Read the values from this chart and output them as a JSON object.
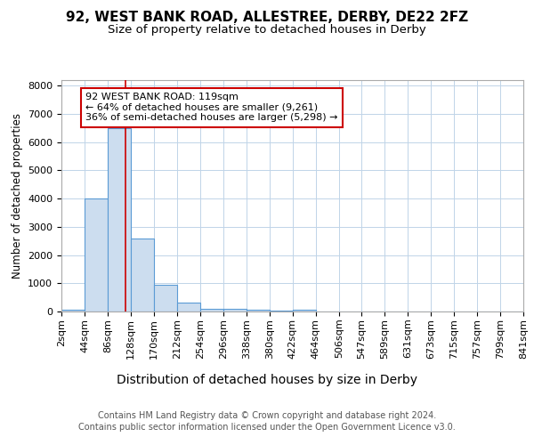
{
  "title1": "92, WEST BANK ROAD, ALLESTREE, DERBY, DE22 2FZ",
  "title2": "Size of property relative to detached houses in Derby",
  "xlabel": "Distribution of detached houses by size in Derby",
  "ylabel": "Number of detached properties",
  "footer1": "Contains HM Land Registry data © Crown copyright and database right 2024.",
  "footer2": "Contains public sector information licensed under the Open Government Licence v3.0.",
  "bin_edges": [
    2,
    44,
    86,
    128,
    170,
    212,
    254,
    296,
    338,
    380,
    422,
    464,
    506,
    547,
    589,
    631,
    673,
    715,
    757,
    799,
    841
  ],
  "bar_heights": [
    50,
    4000,
    6500,
    2600,
    950,
    300,
    110,
    80,
    50,
    20,
    50,
    5,
    3,
    2,
    1,
    1,
    1,
    0,
    0,
    0
  ],
  "bar_color": "#ccddef",
  "bar_edge_color": "#5b9bd5",
  "bar_linewidth": 0.8,
  "red_line_x": 119,
  "red_line_color": "#cc0000",
  "annotation_line1": "92 WEST BANK ROAD: 119sqm",
  "annotation_line2": "← 64% of detached houses are smaller (9,261)",
  "annotation_line3": "36% of semi-detached houses are larger (5,298) →",
  "annotation_box_color": "#ffffff",
  "annotation_box_edge": "#cc0000",
  "ylim": [
    0,
    8200
  ],
  "yticks": [
    0,
    1000,
    2000,
    3000,
    4000,
    5000,
    6000,
    7000,
    8000
  ],
  "background_color": "#ffffff",
  "grid_color": "#c0d4e8",
  "title1_fontsize": 11,
  "title2_fontsize": 9.5,
  "xlabel_fontsize": 10,
  "ylabel_fontsize": 8.5,
  "tick_fontsize": 8,
  "annotation_fontsize": 8,
  "footer_fontsize": 7,
  "footer_color": "#555555"
}
